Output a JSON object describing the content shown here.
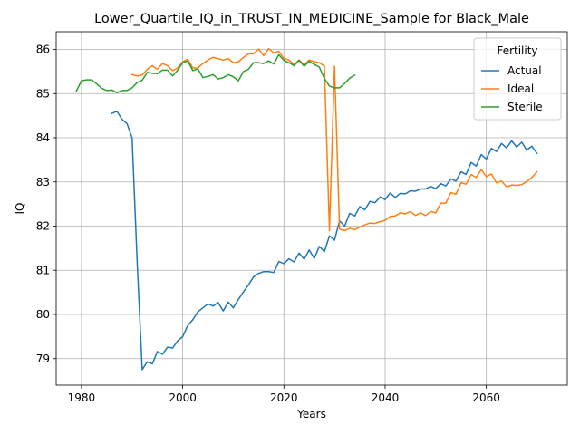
{
  "chart_data": {
    "type": "line",
    "title": "Lower_Quartile_IQ_in_TRUST_IN_MEDICINE_Sample for Black_Male",
    "xlabel": "Years",
    "ylabel": "IQ",
    "xlim": [
      1975,
      2076
    ],
    "ylim": [
      78.4,
      86.4
    ],
    "xticks": [
      1980,
      2000,
      2020,
      2040,
      2060
    ],
    "yticks": [
      79,
      80,
      81,
      82,
      83,
      84,
      85,
      86
    ],
    "grid": true,
    "legend": {
      "title": "Fertility",
      "placement": "top-right"
    },
    "series": [
      {
        "name": "Actual",
        "color": "#1f77b4",
        "x": [
          1986,
          1987,
          1988,
          1989,
          1990,
          1991,
          1992,
          1993,
          1994,
          1995,
          1996,
          1997,
          1998,
          1999,
          2000,
          2001,
          2002,
          2003,
          2004,
          2005,
          2006,
          2007,
          2008,
          2009,
          2010,
          2011,
          2012,
          2013,
          2014,
          2015,
          2016,
          2017,
          2018,
          2019,
          2020,
          2021,
          2022,
          2023,
          2024,
          2025,
          2026,
          2027,
          2028,
          2029,
          2030,
          2031,
          2032,
          2033,
          2034,
          2035,
          2036,
          2037,
          2038,
          2039,
          2040,
          2041,
          2042,
          2043,
          2044,
          2045,
          2046,
          2047,
          2048,
          2049,
          2050,
          2051,
          2052,
          2053,
          2054,
          2055,
          2056,
          2057,
          2058,
          2059,
          2060,
          2061,
          2062,
          2063,
          2064,
          2065,
          2066,
          2067,
          2068,
          2069,
          2070
        ],
        "values": [
          84.55,
          84.6,
          84.42,
          84.32,
          84.0,
          81.2,
          78.75,
          78.93,
          78.88,
          79.16,
          79.1,
          79.26,
          79.24,
          79.4,
          79.5,
          79.75,
          79.88,
          80.06,
          80.15,
          80.24,
          80.19,
          80.27,
          80.08,
          80.28,
          80.15,
          80.34,
          80.51,
          80.67,
          80.85,
          80.93,
          80.97,
          80.97,
          80.95,
          81.2,
          81.15,
          81.26,
          81.19,
          81.39,
          81.25,
          81.46,
          81.27,
          81.54,
          81.42,
          81.78,
          81.68,
          82.12,
          82.0,
          82.29,
          82.23,
          82.44,
          82.37,
          82.56,
          82.53,
          82.66,
          82.6,
          82.75,
          82.65,
          82.74,
          82.73,
          82.8,
          82.79,
          82.84,
          82.84,
          82.9,
          82.85,
          82.96,
          82.91,
          83.07,
          83.02,
          83.23,
          83.17,
          83.44,
          83.36,
          83.62,
          83.52,
          83.76,
          83.69,
          83.87,
          83.77,
          83.93,
          83.79,
          83.9,
          83.72,
          83.81,
          83.65
        ]
      },
      {
        "name": "Ideal",
        "color": "#ff7f0e",
        "x": [
          1990,
          1991,
          1992,
          1993,
          1994,
          1995,
          1996,
          1997,
          1998,
          1999,
          2000,
          2001,
          2002,
          2003,
          2004,
          2005,
          2006,
          2007,
          2008,
          2009,
          2010,
          2011,
          2012,
          2013,
          2014,
          2015,
          2016,
          2017,
          2018,
          2019,
          2020,
          2021,
          2022,
          2023,
          2024,
          2025,
          2026,
          2027,
          2028,
          2029,
          2030,
          2031,
          2032,
          2033,
          2034,
          2035,
          2036,
          2037,
          2038,
          2039,
          2040,
          2041,
          2042,
          2043,
          2044,
          2045,
          2046,
          2047,
          2048,
          2049,
          2050,
          2051,
          2052,
          2053,
          2054,
          2055,
          2056,
          2057,
          2058,
          2059,
          2060,
          2061,
          2062,
          2063,
          2064,
          2065,
          2066,
          2067,
          2068,
          2069,
          2070
        ],
        "values": [
          85.43,
          85.4,
          85.42,
          85.55,
          85.63,
          85.55,
          85.68,
          85.63,
          85.52,
          85.58,
          85.72,
          85.78,
          85.58,
          85.58,
          85.68,
          85.76,
          85.82,
          85.79,
          85.76,
          85.79,
          85.7,
          85.72,
          85.82,
          85.9,
          85.9,
          86.01,
          85.86,
          86.02,
          85.92,
          85.96,
          85.79,
          85.76,
          85.65,
          85.76,
          85.65,
          85.76,
          85.72,
          85.7,
          85.62,
          81.9,
          85.62,
          81.93,
          81.9,
          81.95,
          81.92,
          81.98,
          82.03,
          82.07,
          82.06,
          82.1,
          82.13,
          82.22,
          82.23,
          82.3,
          82.28,
          82.33,
          82.24,
          82.3,
          82.24,
          82.33,
          82.3,
          82.52,
          82.52,
          82.76,
          82.72,
          82.98,
          82.95,
          83.17,
          83.1,
          83.28,
          83.12,
          83.18,
          82.98,
          83.02,
          82.89,
          82.93,
          82.92,
          82.94,
          83.01,
          83.1,
          83.23
        ]
      },
      {
        "name": "Sterile",
        "color": "#2ca02c",
        "x": [
          1979,
          1980,
          1981,
          1982,
          1983,
          1984,
          1985,
          1986,
          1987,
          1988,
          1989,
          1990,
          1991,
          1992,
          1993,
          1994,
          1995,
          1996,
          1997,
          1998,
          1999,
          2000,
          2001,
          2002,
          2003,
          2004,
          2005,
          2006,
          2007,
          2008,
          2009,
          2010,
          2011,
          2012,
          2013,
          2014,
          2015,
          2016,
          2017,
          2018,
          2019,
          2020,
          2021,
          2022,
          2023,
          2024,
          2025,
          2026,
          2027,
          2028,
          2029,
          2030,
          2031,
          2032,
          2033,
          2034
        ],
        "values": [
          85.06,
          85.29,
          85.31,
          85.31,
          85.22,
          85.12,
          85.07,
          85.08,
          85.02,
          85.07,
          85.07,
          85.13,
          85.25,
          85.3,
          85.48,
          85.46,
          85.45,
          85.53,
          85.53,
          85.4,
          85.53,
          85.7,
          85.74,
          85.52,
          85.56,
          85.36,
          85.39,
          85.43,
          85.33,
          85.36,
          85.43,
          85.38,
          85.29,
          85.5,
          85.55,
          85.7,
          85.7,
          85.68,
          85.74,
          85.67,
          85.88,
          85.75,
          85.7,
          85.63,
          85.75,
          85.62,
          85.73,
          85.66,
          85.6,
          85.34,
          85.17,
          85.13,
          85.13,
          85.23,
          85.35,
          85.42
        ]
      }
    ]
  }
}
